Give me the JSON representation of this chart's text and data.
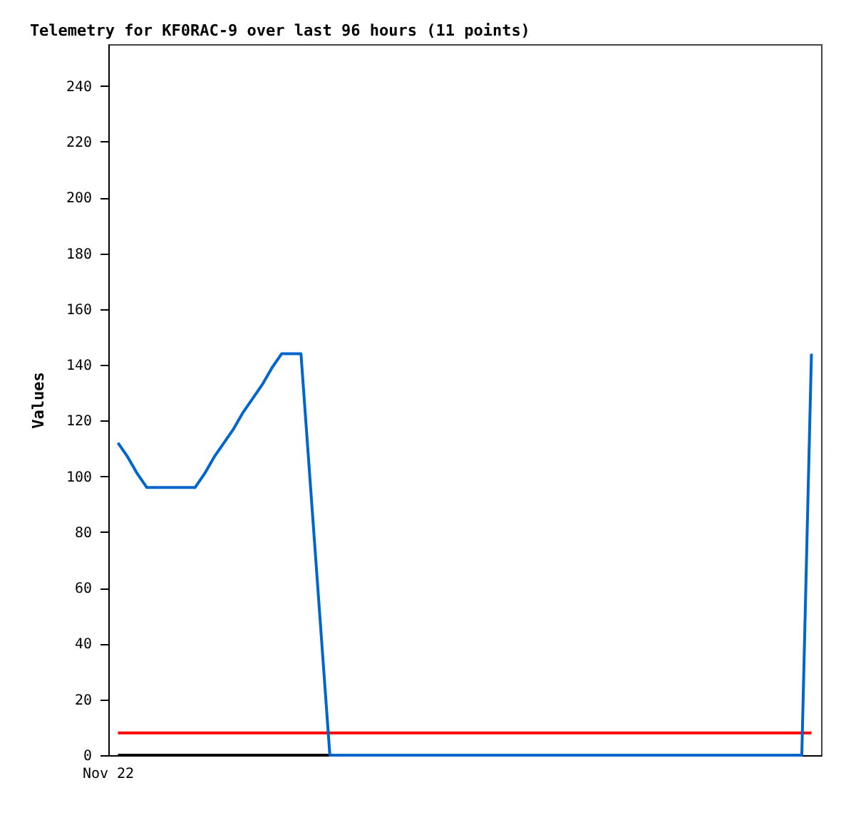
{
  "chart_data": {
    "type": "line",
    "title": "Telemetry for KF0RAC-9 over last 96 hours (11 points)",
    "ylabel": "Values",
    "annotations": [
      "Nov 22"
    ],
    "categories": [
      null,
      null,
      null,
      null,
      null,
      null,
      null,
      null,
      null,
      null,
      null,
      null,
      null,
      null,
      null,
      null,
      null,
      null,
      null,
      null,
      null,
      null,
      null,
      null,
      null,
      null,
      null,
      null,
      null,
      null,
      null,
      null,
      null,
      null,
      null,
      null,
      null,
      null,
      null,
      null,
      null,
      null,
      null,
      null,
      null,
      null,
      null,
      null,
      null,
      null,
      null,
      null,
      null,
      null,
      null,
      null,
      null,
      null,
      null,
      null,
      null,
      null,
      null,
      null,
      null,
      null,
      null,
      null,
      null,
      null,
      null,
      null,
      null
    ],
    "ylim": [
      0,
      255
    ],
    "yticks": [
      0,
      20,
      40,
      60,
      80,
      100,
      120,
      140,
      160,
      180,
      200,
      220,
      240
    ],
    "grid": false,
    "legend": false,
    "series": [
      {
        "color": "#ff0000",
        "values": [
          8,
          8,
          8,
          8,
          8,
          8,
          8,
          8,
          8,
          8,
          8,
          8,
          8,
          8,
          8,
          8,
          8,
          8,
          8,
          8,
          8,
          8,
          8,
          8,
          8,
          8,
          8,
          8,
          8,
          8,
          8,
          8,
          8,
          8,
          8,
          8,
          8,
          8,
          8,
          8,
          8,
          8,
          8,
          8,
          8,
          8,
          8,
          8,
          8,
          8,
          8,
          8,
          8,
          8,
          8,
          8,
          8,
          8,
          8,
          8,
          8,
          8,
          8,
          8,
          8,
          8,
          8,
          8,
          8,
          8,
          8,
          8,
          8
        ]
      },
      {
        "color": "#000000",
        "values": [
          0,
          0,
          0,
          0,
          0,
          0,
          0,
          0,
          0,
          0,
          0,
          0,
          0,
          0,
          0,
          0,
          0,
          0,
          0,
          0,
          0,
          0,
          0,
          null,
          null,
          null,
          null,
          null,
          null,
          null,
          null,
          null,
          null,
          null,
          null,
          null,
          null,
          null,
          null,
          null,
          null,
          null,
          null,
          null,
          null,
          null,
          null,
          null,
          null,
          null,
          null,
          null,
          null,
          null,
          null,
          null,
          null,
          null,
          null,
          null,
          null,
          null,
          null,
          null,
          null,
          null,
          null,
          null,
          null,
          null,
          null,
          null,
          null
        ]
      },
      {
        "color": "#0066cc",
        "values": [
          112,
          107,
          101,
          96,
          96,
          96,
          96,
          96,
          96,
          101,
          107,
          112,
          117,
          123,
          128,
          133,
          139,
          144,
          144,
          144,
          96,
          48,
          0,
          0,
          0,
          0,
          0,
          0,
          0,
          0,
          0,
          0,
          0,
          0,
          0,
          0,
          0,
          0,
          0,
          0,
          0,
          0,
          0,
          0,
          0,
          0,
          0,
          0,
          0,
          0,
          0,
          0,
          0,
          0,
          0,
          0,
          0,
          0,
          0,
          0,
          0,
          0,
          0,
          0,
          0,
          0,
          0,
          0,
          0,
          0,
          0,
          0,
          144
        ]
      }
    ]
  }
}
